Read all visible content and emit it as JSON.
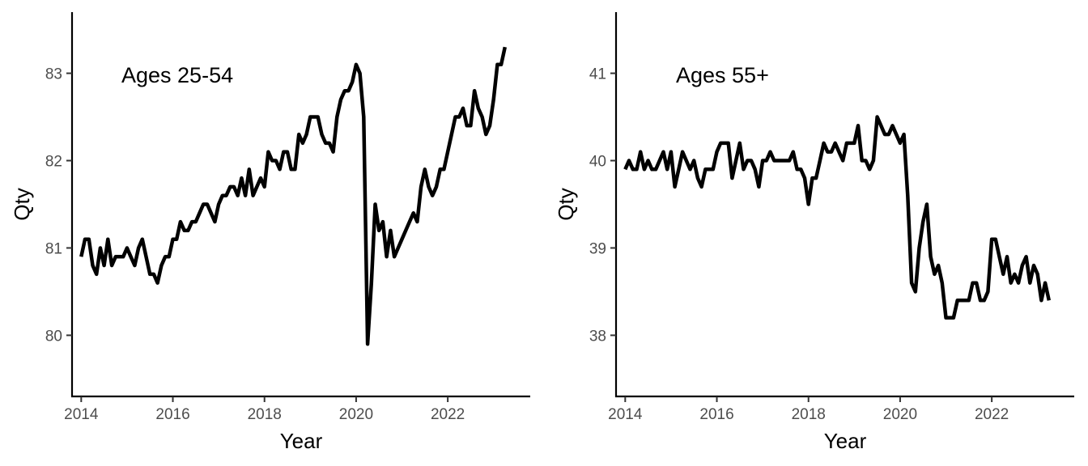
{
  "chart_data": [
    {
      "type": "line",
      "annotation": "Ages 25-54",
      "xlabel": "Year",
      "ylabel": "Qty",
      "xlim": [
        2013.8,
        2023.8
      ],
      "ylim": [
        79.3,
        83.7
      ],
      "x_ticks": [
        2014,
        2016,
        2018,
        2020,
        2022
      ],
      "y_ticks": [
        80,
        81,
        82,
        83
      ],
      "grid": false,
      "series": [
        {
          "x_start": 2014.0,
          "x_step": 0.08333,
          "values": [
            80.9,
            81.1,
            81.1,
            80.8,
            80.7,
            81.0,
            80.8,
            81.1,
            80.8,
            80.9,
            80.9,
            80.9,
            81.0,
            80.9,
            80.8,
            81.0,
            81.1,
            80.9,
            80.7,
            80.7,
            80.6,
            80.8,
            80.9,
            80.9,
            81.1,
            81.1,
            81.3,
            81.2,
            81.2,
            81.3,
            81.3,
            81.4,
            81.5,
            81.5,
            81.4,
            81.3,
            81.5,
            81.6,
            81.6,
            81.7,
            81.7,
            81.6,
            81.8,
            81.6,
            81.9,
            81.6,
            81.7,
            81.8,
            81.7,
            82.1,
            82.0,
            82.0,
            81.9,
            82.1,
            82.1,
            81.9,
            81.9,
            82.3,
            82.2,
            82.3,
            82.5,
            82.5,
            82.5,
            82.3,
            82.2,
            82.2,
            82.1,
            82.5,
            82.7,
            82.8,
            82.8,
            82.9,
            83.1,
            83.0,
            82.5,
            79.9,
            80.6,
            81.5,
            81.2,
            81.3,
            80.9,
            81.2,
            80.9,
            81.0,
            81.1,
            81.2,
            81.3,
            81.4,
            81.3,
            81.7,
            81.9,
            81.7,
            81.6,
            81.7,
            81.9,
            81.9,
            82.1,
            82.3,
            82.5,
            82.5,
            82.6,
            82.4,
            82.4,
            82.8,
            82.6,
            82.5,
            82.3,
            82.4,
            82.7,
            83.1,
            83.1,
            83.3
          ]
        }
      ]
    },
    {
      "type": "line",
      "annotation": "Ages 55+",
      "xlabel": "Year",
      "ylabel": "Qty",
      "xlim": [
        2013.8,
        2023.8
      ],
      "ylim": [
        37.3,
        41.7
      ],
      "x_ticks": [
        2014,
        2016,
        2018,
        2020,
        2022
      ],
      "y_ticks": [
        38,
        39,
        40,
        41
      ],
      "grid": false,
      "series": [
        {
          "x_start": 2014.0,
          "x_step": 0.08333,
          "values": [
            39.9,
            40.0,
            39.9,
            39.9,
            40.1,
            39.9,
            40.0,
            39.9,
            39.9,
            40.0,
            40.1,
            39.9,
            40.1,
            39.7,
            39.9,
            40.1,
            40.0,
            39.9,
            40.0,
            39.8,
            39.7,
            39.9,
            39.9,
            39.9,
            40.1,
            40.2,
            40.2,
            40.2,
            39.8,
            40.0,
            40.2,
            39.9,
            40.0,
            40.0,
            39.9,
            39.7,
            40.0,
            40.0,
            40.1,
            40.0,
            40.0,
            40.0,
            40.0,
            40.0,
            40.1,
            39.9,
            39.9,
            39.8,
            39.5,
            39.8,
            39.8,
            40.0,
            40.2,
            40.1,
            40.1,
            40.2,
            40.1,
            40.0,
            40.2,
            40.2,
            40.2,
            40.4,
            40.0,
            40.0,
            39.9,
            40.0,
            40.5,
            40.4,
            40.3,
            40.3,
            40.4,
            40.3,
            40.2,
            40.3,
            39.6,
            38.6,
            38.5,
            39.0,
            39.3,
            39.5,
            38.9,
            38.7,
            38.8,
            38.6,
            38.2,
            38.2,
            38.2,
            38.4,
            38.4,
            38.4,
            38.4,
            38.6,
            38.6,
            38.4,
            38.4,
            38.5,
            39.1,
            39.1,
            38.9,
            38.7,
            38.9,
            38.6,
            38.7,
            38.6,
            38.8,
            38.9,
            38.6,
            38.8,
            38.7,
            38.4,
            38.6,
            38.4
          ]
        }
      ]
    }
  ]
}
